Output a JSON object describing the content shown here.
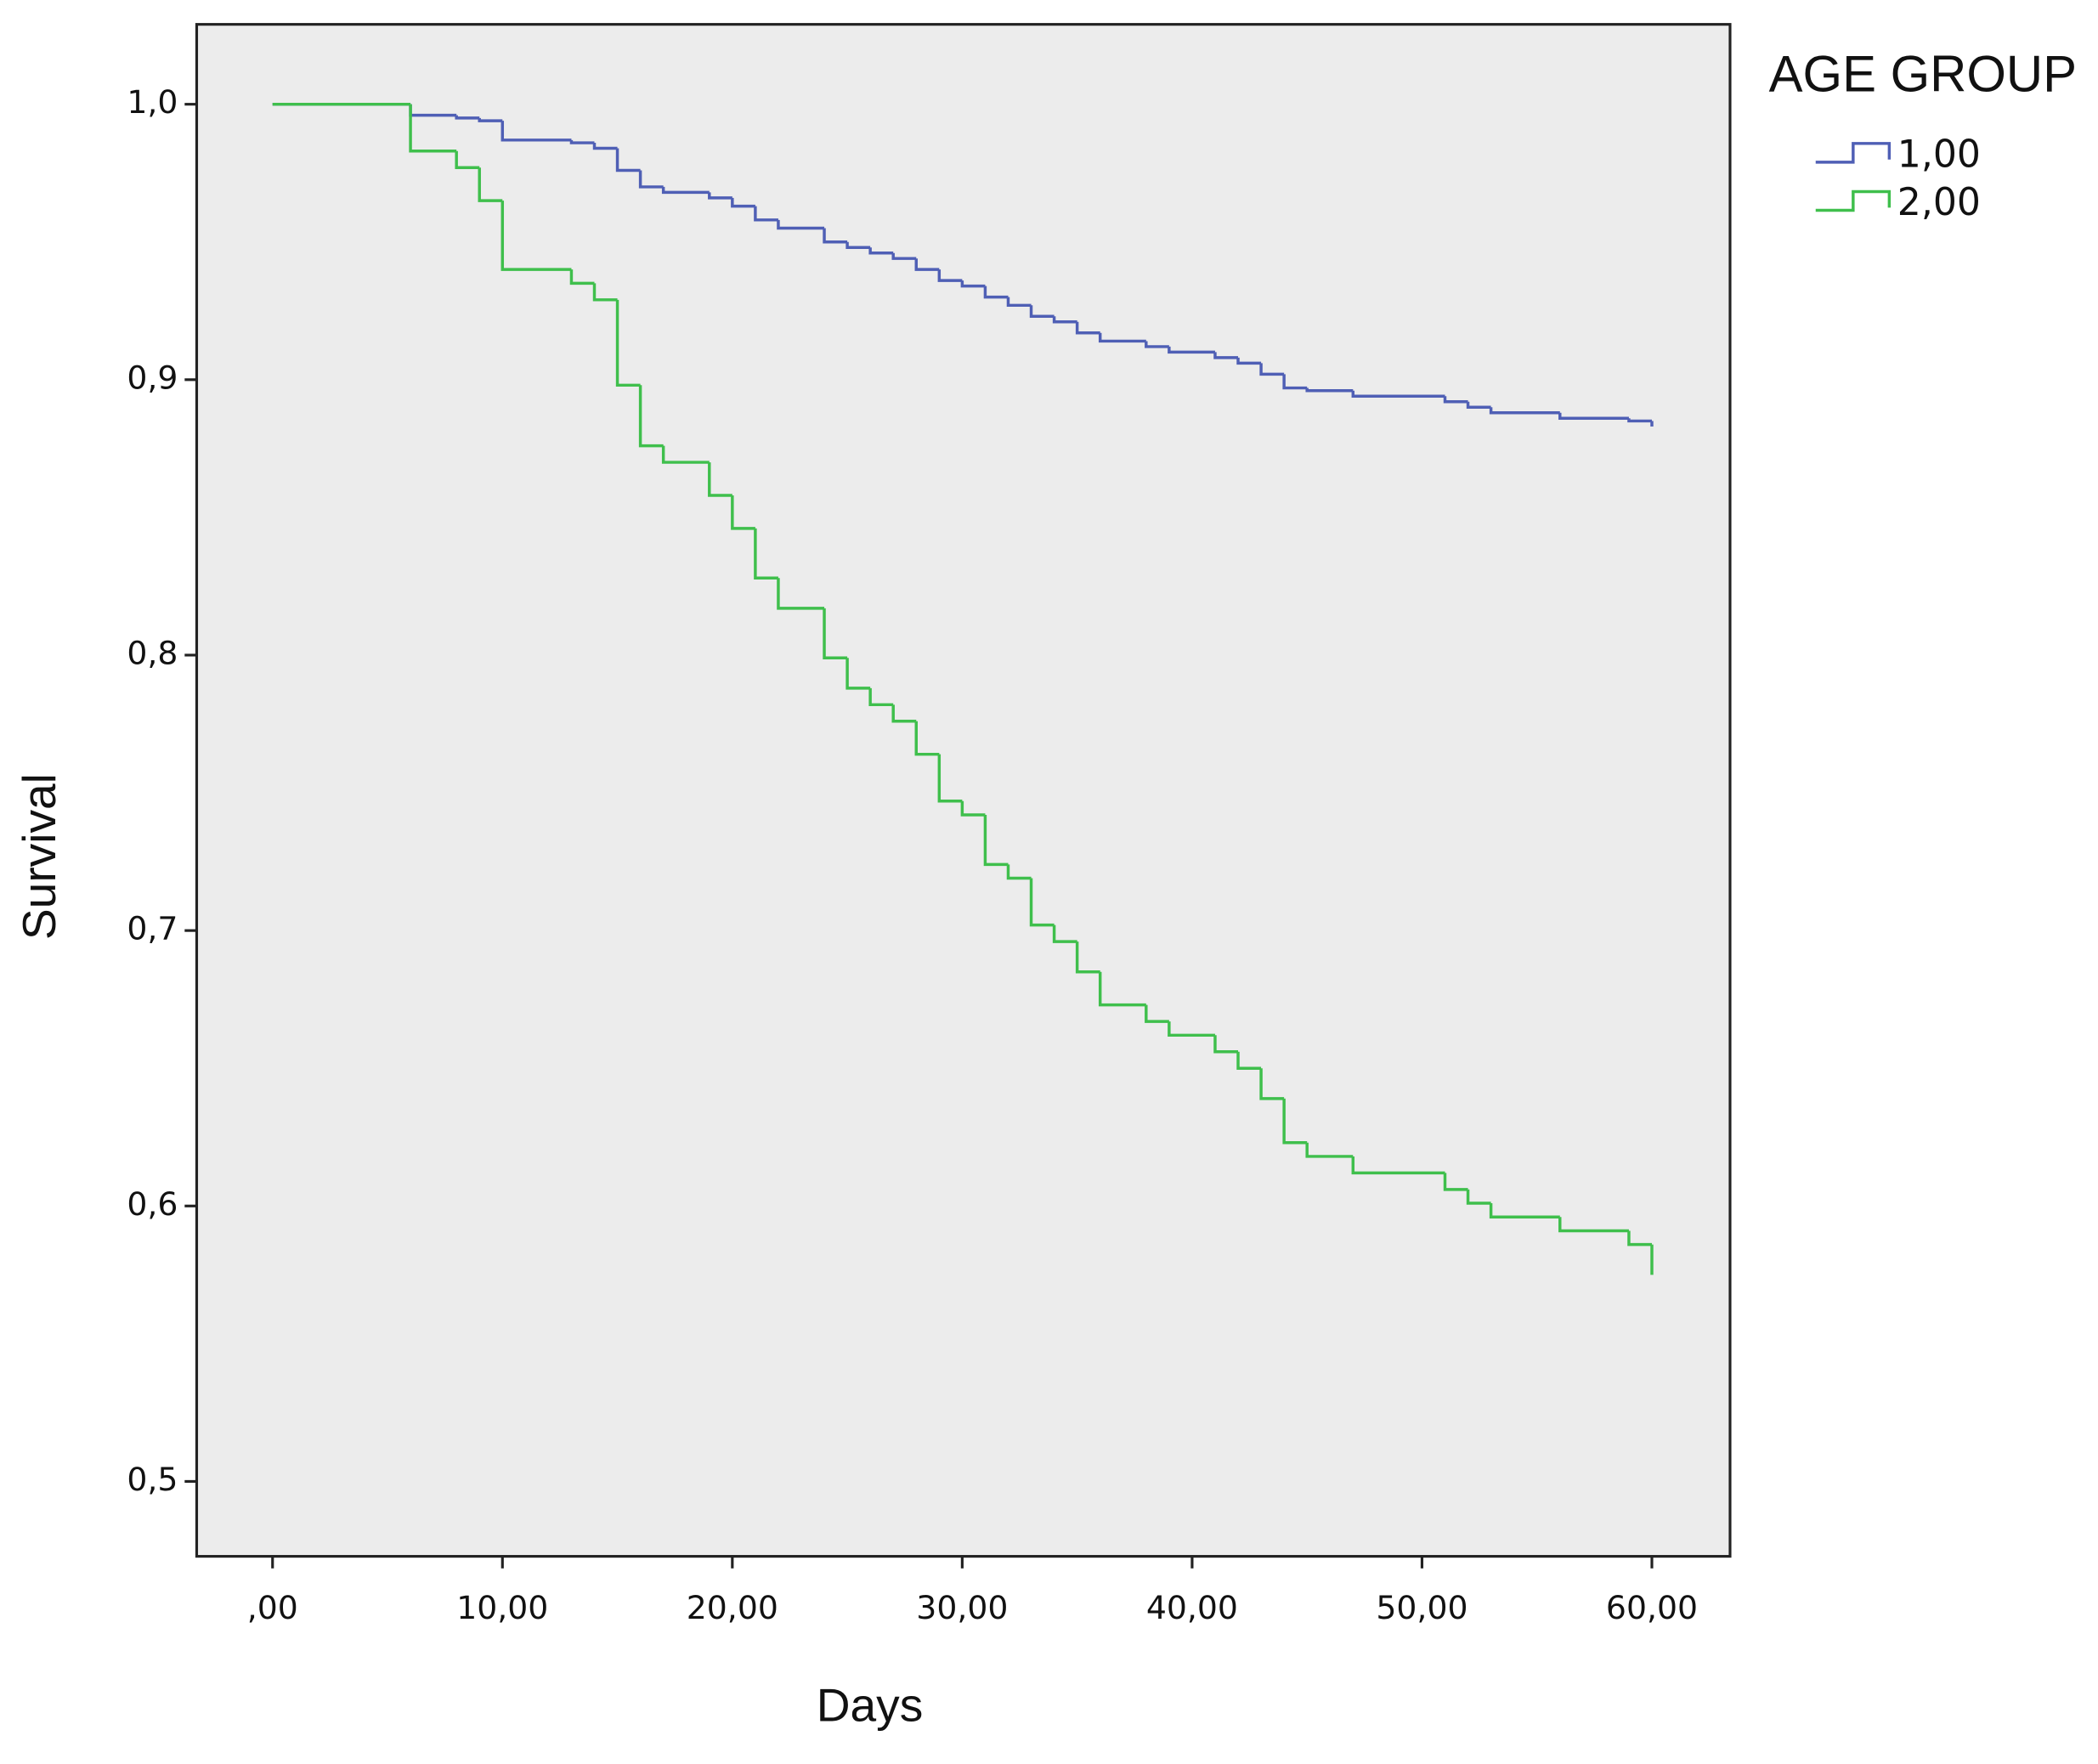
{
  "chart_data": {
    "type": "step",
    "x_label": "Days",
    "y_label": "Survival",
    "legend_title": "AGE GROUP",
    "legend": "right",
    "x": [
      0,
      6,
      8,
      9,
      10,
      13,
      14,
      15,
      16,
      17,
      19,
      20,
      21,
      22,
      24,
      25,
      26,
      27,
      28,
      29,
      30,
      31,
      32,
      33,
      34,
      35,
      36,
      38,
      39,
      41,
      42,
      43,
      44,
      45,
      47,
      51,
      52,
      53,
      56,
      59,
      60
    ],
    "series": [
      {
        "name": "1,00",
        "color": "#4f5fb5",
        "values": [
          1.0,
          0.996,
          0.995,
          0.994,
          0.987,
          0.986,
          0.984,
          0.976,
          0.97,
          0.968,
          0.966,
          0.963,
          0.958,
          0.955,
          0.95,
          0.948,
          0.946,
          0.944,
          0.94,
          0.936,
          0.934,
          0.93,
          0.927,
          0.923,
          0.921,
          0.917,
          0.914,
          0.912,
          0.91,
          0.908,
          0.906,
          0.902,
          0.897,
          0.896,
          0.894,
          0.892,
          0.89,
          0.888,
          0.886,
          0.885,
          0.883
        ]
      },
      {
        "name": "2,00",
        "color": "#3fbf4c",
        "values": [
          1.0,
          0.983,
          0.977,
          0.965,
          0.94,
          0.935,
          0.929,
          0.898,
          0.876,
          0.87,
          0.858,
          0.846,
          0.828,
          0.817,
          0.799,
          0.788,
          0.782,
          0.776,
          0.764,
          0.747,
          0.742,
          0.724,
          0.719,
          0.702,
          0.696,
          0.685,
          0.673,
          0.667,
          0.662,
          0.656,
          0.65,
          0.639,
          0.623,
          0.618,
          0.612,
          0.606,
          0.601,
          0.596,
          0.591,
          0.586,
          0.575
        ]
      }
    ],
    "xlim": [
      -3.3,
      63.4
    ],
    "ylim": [
      0.4728,
      1.029
    ],
    "xticks": [
      {
        "value": 0,
        "label": ",00"
      },
      {
        "value": 10,
        "label": "10,00"
      },
      {
        "value": 20,
        "label": "20,00"
      },
      {
        "value": 30,
        "label": "30,00"
      },
      {
        "value": 40,
        "label": "40,00"
      },
      {
        "value": 50,
        "label": "50,00"
      },
      {
        "value": 60,
        "label": "60,00"
      }
    ],
    "yticks": [
      {
        "value": 0.5,
        "label": "0,5"
      },
      {
        "value": 0.6,
        "label": "0,6"
      },
      {
        "value": 0.7,
        "label": "0,7"
      },
      {
        "value": 0.8,
        "label": "0,8"
      },
      {
        "value": 0.9,
        "label": "0,9"
      },
      {
        "value": 1.0,
        "label": "1,0"
      }
    ],
    "plot_background": "#ececec",
    "grid": false
  }
}
